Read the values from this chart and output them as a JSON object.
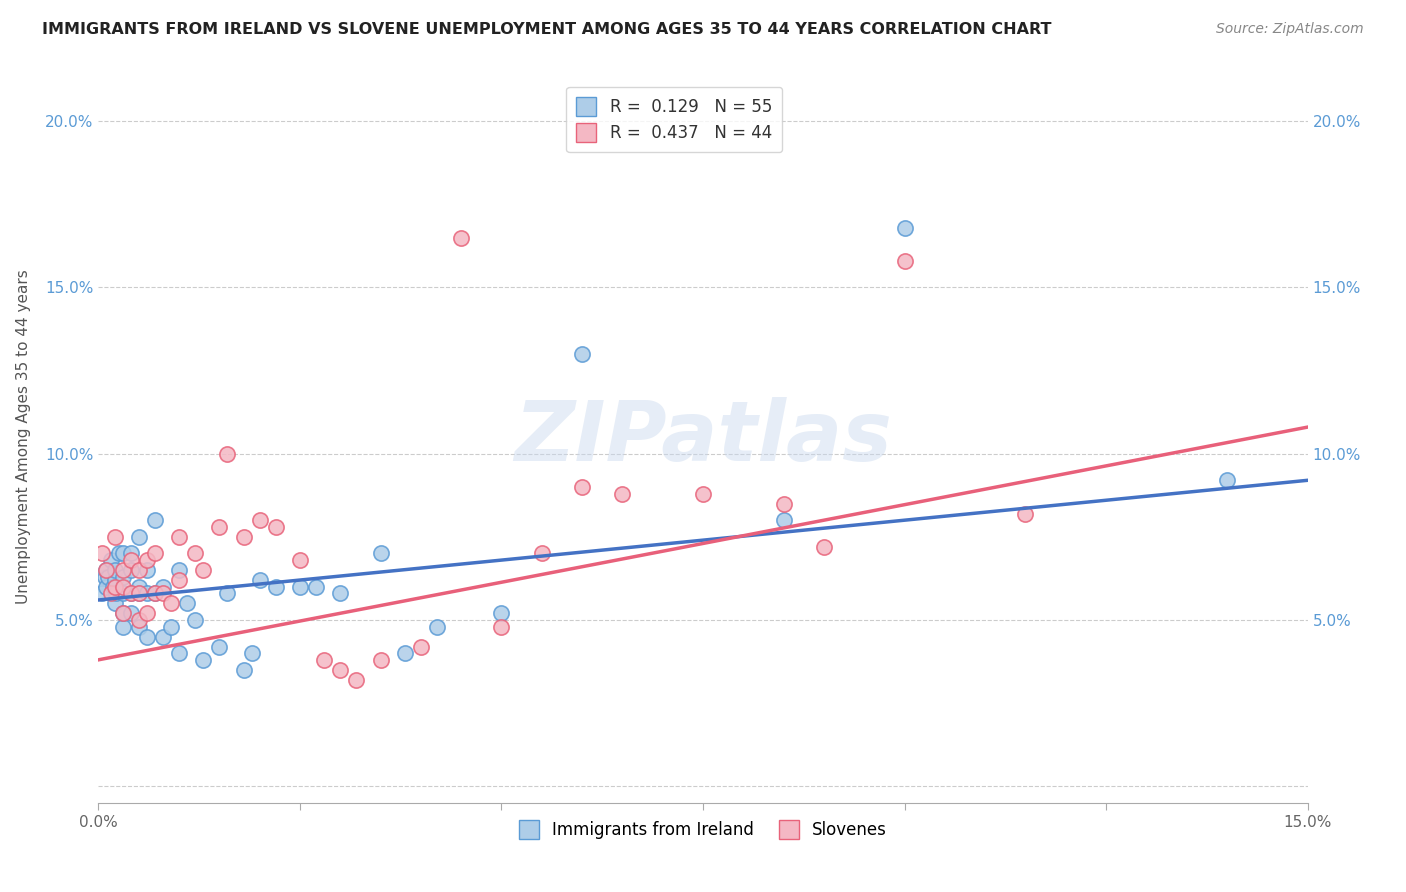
{
  "title": "IMMIGRANTS FROM IRELAND VS SLOVENE UNEMPLOYMENT AMONG AGES 35 TO 44 YEARS CORRELATION CHART",
  "source": "Source: ZipAtlas.com",
  "ylabel": "Unemployment Among Ages 35 to 44 years",
  "xlim": [
    0.0,
    0.15
  ],
  "ylim": [
    -0.005,
    0.215
  ],
  "yticks": [
    0.0,
    0.05,
    0.1,
    0.15,
    0.2
  ],
  "ireland_R": 0.129,
  "ireland_N": 55,
  "slovene_R": 0.437,
  "slovene_N": 44,
  "ireland_color": "#aecde8",
  "slovene_color": "#f4b8c4",
  "ireland_edge_color": "#5b9bd5",
  "slovene_edge_color": "#e8637a",
  "ireland_line_color": "#4472c4",
  "slovene_line_color": "#e8607a",
  "ireland_scatter_x": [
    0.0005,
    0.0008,
    0.001,
    0.001,
    0.0012,
    0.0015,
    0.0018,
    0.002,
    0.002,
    0.002,
    0.0022,
    0.0025,
    0.003,
    0.003,
    0.003,
    0.003,
    0.003,
    0.004,
    0.004,
    0.004,
    0.004,
    0.005,
    0.005,
    0.005,
    0.005,
    0.006,
    0.006,
    0.006,
    0.007,
    0.007,
    0.008,
    0.008,
    0.009,
    0.01,
    0.01,
    0.011,
    0.012,
    0.013,
    0.015,
    0.016,
    0.018,
    0.019,
    0.02,
    0.022,
    0.025,
    0.027,
    0.03,
    0.035,
    0.038,
    0.042,
    0.05,
    0.06,
    0.085,
    0.1,
    0.14
  ],
  "ireland_scatter_y": [
    0.058,
    0.063,
    0.06,
    0.065,
    0.063,
    0.068,
    0.06,
    0.055,
    0.062,
    0.065,
    0.058,
    0.07,
    0.048,
    0.052,
    0.058,
    0.063,
    0.07,
    0.052,
    0.058,
    0.065,
    0.07,
    0.048,
    0.058,
    0.06,
    0.075,
    0.045,
    0.058,
    0.065,
    0.058,
    0.08,
    0.045,
    0.06,
    0.048,
    0.04,
    0.065,
    0.055,
    0.05,
    0.038,
    0.042,
    0.058,
    0.035,
    0.04,
    0.062,
    0.06,
    0.06,
    0.06,
    0.058,
    0.07,
    0.04,
    0.048,
    0.052,
    0.13,
    0.08,
    0.168,
    0.092
  ],
  "slovene_scatter_x": [
    0.0005,
    0.001,
    0.0015,
    0.002,
    0.002,
    0.003,
    0.003,
    0.003,
    0.004,
    0.004,
    0.005,
    0.005,
    0.005,
    0.006,
    0.006,
    0.007,
    0.007,
    0.008,
    0.009,
    0.01,
    0.01,
    0.012,
    0.013,
    0.015,
    0.016,
    0.018,
    0.02,
    0.022,
    0.025,
    0.028,
    0.03,
    0.032,
    0.035,
    0.04,
    0.045,
    0.05,
    0.055,
    0.06,
    0.065,
    0.075,
    0.085,
    0.09,
    0.1,
    0.115
  ],
  "slovene_scatter_y": [
    0.07,
    0.065,
    0.058,
    0.06,
    0.075,
    0.052,
    0.06,
    0.065,
    0.058,
    0.068,
    0.05,
    0.058,
    0.065,
    0.052,
    0.068,
    0.058,
    0.07,
    0.058,
    0.055,
    0.062,
    0.075,
    0.07,
    0.065,
    0.078,
    0.1,
    0.075,
    0.08,
    0.078,
    0.068,
    0.038,
    0.035,
    0.032,
    0.038,
    0.042,
    0.165,
    0.048,
    0.07,
    0.09,
    0.088,
    0.088,
    0.085,
    0.072,
    0.158,
    0.082
  ],
  "ireland_line_x0": 0.0,
  "ireland_line_y0": 0.056,
  "ireland_line_x1": 0.15,
  "ireland_line_y1": 0.092,
  "slovene_line_x0": 0.0,
  "slovene_line_y0": 0.038,
  "slovene_line_x1": 0.15,
  "slovene_line_y1": 0.108,
  "watermark_text": "ZIPatlas",
  "background_color": "#ffffff",
  "grid_color": "#cccccc"
}
